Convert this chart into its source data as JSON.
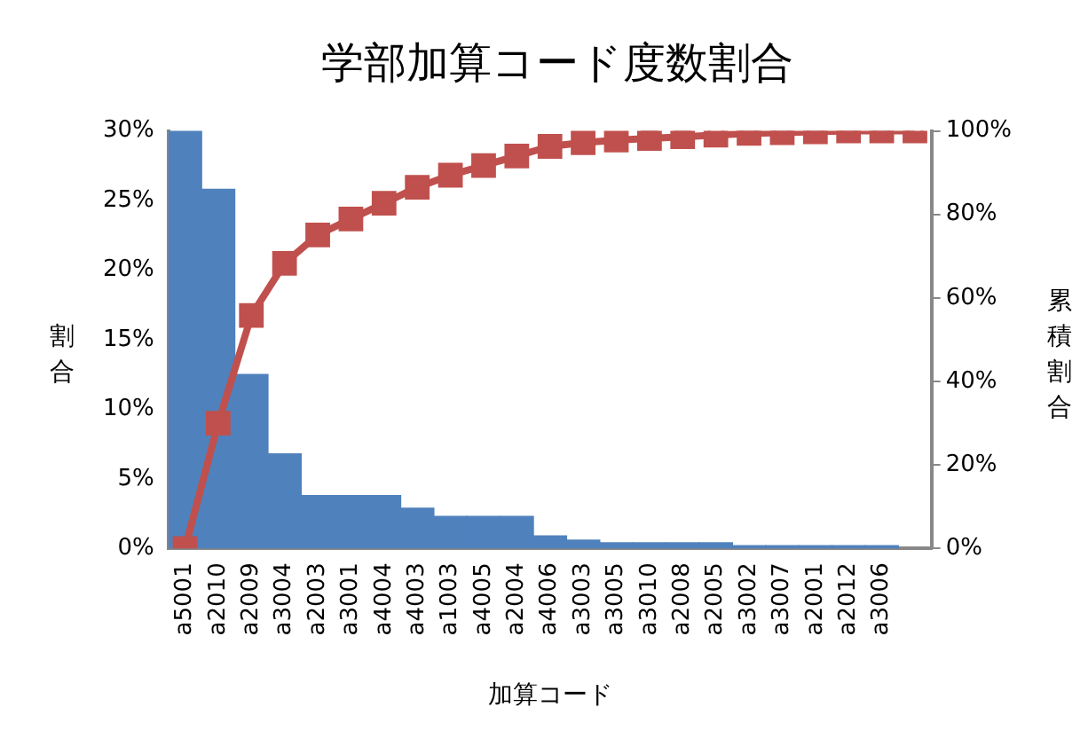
{
  "chart_data": {
    "type": "bar",
    "title": "学部加算コード度数割合",
    "xlabel": "加算コード",
    "ylabel": "割合",
    "y2label": "累積割合",
    "categories": [
      "a5001",
      "a2010",
      "a2009",
      "a3004",
      "a2003",
      "a3001",
      "a4004",
      "a4003",
      "a1003",
      "a4005",
      "a2004",
      "a4006",
      "a3003",
      "a3005",
      "a3010",
      "a2008",
      "a2005",
      "a3002",
      "a3007",
      "a2001",
      "a2012",
      "a3006",
      null
    ],
    "series": [
      {
        "color": "#4f81bd",
        "values": [
          30,
          25.8,
          12.5,
          6.8,
          3.8,
          3.8,
          3.8,
          2.9,
          2.3,
          2.3,
          2.3,
          0.9,
          0.6,
          0.4,
          0.4,
          0.4,
          0.4,
          0.2,
          0.2,
          0.2,
          0.2,
          0.2,
          null
        ]
      },
      {
        "type": "line",
        "axis": "y2",
        "color": "#c0504d",
        "marker": "square",
        "line_style": "solid",
        "values": [
          0,
          30,
          55.8,
          68.3,
          75.1,
          78.9,
          82.7,
          86.5,
          89.4,
          91.7,
          94,
          96.3,
          97.2,
          97.8,
          98.2,
          98.6,
          99,
          99.4,
          99.6,
          99.8,
          100,
          100,
          100
        ]
      }
    ],
    "ylim": [
      0,
      30
    ],
    "yticks": [
      {
        "value": 0,
        "label": "0%"
      },
      {
        "value": 5,
        "label": "5%"
      },
      {
        "value": 10,
        "label": "10%"
      },
      {
        "value": 15,
        "label": "15%"
      },
      {
        "value": 20,
        "label": "20%"
      },
      {
        "value": 25,
        "label": "25%"
      },
      {
        "value": 30,
        "label": "30%"
      }
    ],
    "y2lim": [
      0,
      100
    ],
    "y2ticks": [
      {
        "value": 0,
        "label": "0%"
      },
      {
        "value": 20,
        "label": "20%"
      },
      {
        "value": 40,
        "label": "40%"
      },
      {
        "value": 60,
        "label": "60%"
      },
      {
        "value": 80,
        "label": "80%"
      },
      {
        "value": 100,
        "label": "100%"
      }
    ],
    "grid": false,
    "legend": false
  }
}
